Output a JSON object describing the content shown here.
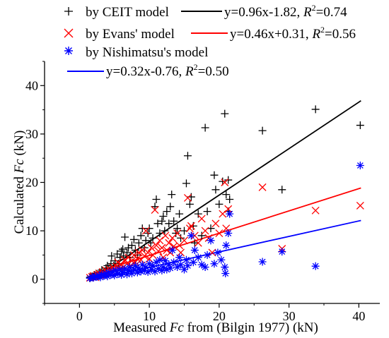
{
  "chart_data": {
    "type": "scatter",
    "xlabel_prefix": "Measured ",
    "xlabel_var": "Fc",
    "xlabel_suffix": " from (Bilgin 1977) (kN)",
    "ylabel_prefix": "Calculated ",
    "ylabel_var": "Fc",
    "ylabel_suffix": " (kN)",
    "xlim": [
      -5,
      43
    ],
    "ylim": [
      -5,
      45
    ],
    "xticks": [
      0,
      10,
      20,
      30,
      40
    ],
    "yticks": [
      0,
      10,
      20,
      30,
      40
    ],
    "grid": false,
    "legend_position": "top",
    "series": [
      {
        "name": "by CEIT model",
        "color": "#000000",
        "marker": "plus",
        "fit_label": "y=0.96x-1.82, ",
        "r2_label": "=0.74",
        "fit": {
          "slope": 0.96,
          "intercept": -1.82,
          "x_range": [
            1.4,
            40.3
          ]
        },
        "points": [
          [
            1.5,
            0.4
          ],
          [
            1.8,
            0.6
          ],
          [
            2.0,
            0.5
          ],
          [
            2.2,
            0.9
          ],
          [
            2.5,
            1.1
          ],
          [
            2.7,
            0.8
          ],
          [
            3.0,
            1.4
          ],
          [
            3.2,
            1.9
          ],
          [
            3.5,
            1.6
          ],
          [
            3.8,
            2.3
          ],
          [
            4.0,
            2.8
          ],
          [
            4.2,
            2.2
          ],
          [
            4.5,
            3.2
          ],
          [
            4.6,
            4.8
          ],
          [
            4.9,
            2.8
          ],
          [
            5.1,
            3.8
          ],
          [
            5.4,
            5.2
          ],
          [
            5.6,
            3.2
          ],
          [
            5.8,
            4.5
          ],
          [
            6.0,
            5.8
          ],
          [
            6.2,
            6.2
          ],
          [
            6.3,
            4.8
          ],
          [
            6.5,
            8.7
          ],
          [
            6.8,
            5.5
          ],
          [
            7.0,
            6.5
          ],
          [
            7.2,
            4.5
          ],
          [
            7.5,
            7.0
          ],
          [
            7.8,
            8.2
          ],
          [
            8.0,
            6.0
          ],
          [
            8.3,
            5.0
          ],
          [
            8.5,
            7.5
          ],
          [
            8.8,
            9.0
          ],
          [
            9.0,
            10.5
          ],
          [
            9.3,
            6.5
          ],
          [
            9.5,
            8.0
          ],
          [
            9.8,
            9.5
          ],
          [
            10.0,
            10.5
          ],
          [
            10.2,
            7.5
          ],
          [
            10.5,
            8.5
          ],
          [
            10.8,
            15.0
          ],
          [
            11.0,
            16.5
          ],
          [
            11.2,
            11.5
          ],
          [
            11.5,
            9.5
          ],
          [
            11.8,
            12.0
          ],
          [
            12.0,
            13.0
          ],
          [
            12.2,
            10.0
          ],
          [
            12.5,
            14.0
          ],
          [
            12.8,
            11.5
          ],
          [
            13.0,
            15.0
          ],
          [
            13.2,
            17.5
          ],
          [
            13.5,
            12.0
          ],
          [
            13.8,
            9.5
          ],
          [
            14.0,
            10.5
          ],
          [
            14.3,
            13.5
          ],
          [
            14.5,
            8.5
          ],
          [
            15.0,
            10.0
          ],
          [
            15.3,
            19.8
          ],
          [
            15.5,
            25.5
          ],
          [
            15.8,
            15.5
          ],
          [
            16.0,
            17.0
          ],
          [
            16.3,
            11.0
          ],
          [
            16.5,
            7.5
          ],
          [
            17.0,
            13.5
          ],
          [
            17.5,
            9.0
          ],
          [
            18.0,
            31.3
          ],
          [
            18.3,
            14.0
          ],
          [
            18.8,
            10.5
          ],
          [
            19.3,
            21.5
          ],
          [
            19.5,
            18.5
          ],
          [
            20.0,
            15.5
          ],
          [
            20.5,
            20.2
          ],
          [
            20.8,
            34.2
          ],
          [
            21.0,
            17.5
          ],
          [
            21.3,
            20.5
          ],
          [
            21.5,
            16.5
          ],
          [
            21.3,
            14.0
          ],
          [
            26.2,
            30.7
          ],
          [
            29.0,
            18.5
          ],
          [
            33.8,
            35.1
          ],
          [
            40.2,
            31.8
          ]
        ]
      },
      {
        "name": "by Evans' model",
        "color": "#ff0000",
        "marker": "x",
        "fit_label": "y=0.46x+0.31, ",
        "r2_label": "=0.56",
        "fit": {
          "slope": 0.46,
          "intercept": 0.31,
          "x_range": [
            1.4,
            40.3
          ]
        },
        "points": [
          [
            1.5,
            0.3
          ],
          [
            1.8,
            0.5
          ],
          [
            2.0,
            0.7
          ],
          [
            2.3,
            0.4
          ],
          [
            2.5,
            0.9
          ],
          [
            2.8,
            1.2
          ],
          [
            3.0,
            0.8
          ],
          [
            3.3,
            1.5
          ],
          [
            3.5,
            1.1
          ],
          [
            3.8,
            1.8
          ],
          [
            4.0,
            1.3
          ],
          [
            4.3,
            2.0
          ],
          [
            4.5,
            1.6
          ],
          [
            4.8,
            2.4
          ],
          [
            5.0,
            1.8
          ],
          [
            5.3,
            2.6
          ],
          [
            5.5,
            3.5
          ],
          [
            5.8,
            2.2
          ],
          [
            6.0,
            3.0
          ],
          [
            6.3,
            2.5
          ],
          [
            6.5,
            4.0
          ],
          [
            6.8,
            3.2
          ],
          [
            7.0,
            4.5
          ],
          [
            7.3,
            2.8
          ],
          [
            7.5,
            3.8
          ],
          [
            7.8,
            5.0
          ],
          [
            8.0,
            3.5
          ],
          [
            8.3,
            4.2
          ],
          [
            8.5,
            5.5
          ],
          [
            8.8,
            4.0
          ],
          [
            9.0,
            6.0
          ],
          [
            9.3,
            4.8
          ],
          [
            9.5,
            10.0
          ],
          [
            9.8,
            5.5
          ],
          [
            10.0,
            4.2
          ],
          [
            10.3,
            6.5
          ],
          [
            10.5,
            5.0
          ],
          [
            10.8,
            14.3
          ],
          [
            11.0,
            7.0
          ],
          [
            11.3,
            5.8
          ],
          [
            11.5,
            8.0
          ],
          [
            11.8,
            6.5
          ],
          [
            12.0,
            4.5
          ],
          [
            12.3,
            9.0
          ],
          [
            12.5,
            6.0
          ],
          [
            12.8,
            7.5
          ],
          [
            13.0,
            5.5
          ],
          [
            13.3,
            8.5
          ],
          [
            13.5,
            6.8
          ],
          [
            14.0,
            9.5
          ],
          [
            14.3,
            7.0
          ],
          [
            14.5,
            5.5
          ],
          [
            15.0,
            8.0
          ],
          [
            15.5,
            16.8
          ],
          [
            15.8,
            10.5
          ],
          [
            16.0,
            11.0
          ],
          [
            16.5,
            9.0
          ],
          [
            17.0,
            7.5
          ],
          [
            17.5,
            12.5
          ],
          [
            18.0,
            10.0
          ],
          [
            18.5,
            8.5
          ],
          [
            19.0,
            5.5
          ],
          [
            19.5,
            11.5
          ],
          [
            20.0,
            9.5
          ],
          [
            20.5,
            13.5
          ],
          [
            20.8,
            20.0
          ],
          [
            21.0,
            10.5
          ],
          [
            21.3,
            14.5
          ],
          [
            26.2,
            19.0
          ],
          [
            29.0,
            6.3
          ],
          [
            33.8,
            14.2
          ],
          [
            40.2,
            15.2
          ]
        ]
      },
      {
        "name": "by Nishimatsu's model",
        "color": "#0000ff",
        "marker": "asterisk",
        "fit_label": "y=0.32x-0.76, ",
        "r2_label": "=0.50",
        "fit": {
          "slope": 0.32,
          "intercept": -0.76,
          "x_range": [
            1.4,
            40.3
          ]
        },
        "points": [
          [
            1.5,
            0.2
          ],
          [
            1.8,
            0.4
          ],
          [
            2.0,
            0.3
          ],
          [
            2.2,
            0.6
          ],
          [
            2.5,
            0.5
          ],
          [
            2.8,
            0.8
          ],
          [
            3.0,
            0.4
          ],
          [
            3.2,
            1.0
          ],
          [
            3.5,
            0.7
          ],
          [
            3.8,
            1.2
          ],
          [
            4.0,
            0.6
          ],
          [
            4.2,
            1.4
          ],
          [
            4.5,
            0.9
          ],
          [
            4.8,
            1.6
          ],
          [
            5.0,
            0.8
          ],
          [
            5.2,
            1.8
          ],
          [
            5.5,
            1.1
          ],
          [
            5.8,
            2.0
          ],
          [
            6.0,
            0.9
          ],
          [
            6.2,
            1.5
          ],
          [
            6.5,
            2.2
          ],
          [
            6.8,
            1.0
          ],
          [
            7.0,
            1.8
          ],
          [
            7.2,
            2.5
          ],
          [
            7.5,
            1.2
          ],
          [
            7.8,
            2.0
          ],
          [
            8.0,
            2.8
          ],
          [
            8.3,
            1.4
          ],
          [
            8.5,
            2.3
          ],
          [
            8.8,
            1.6
          ],
          [
            9.0,
            3.0
          ],
          [
            9.3,
            1.8
          ],
          [
            9.5,
            2.5
          ],
          [
            9.8,
            1.5
          ],
          [
            10.0,
            3.2
          ],
          [
            10.3,
            2.0
          ],
          [
            10.5,
            2.8
          ],
          [
            10.8,
            1.6
          ],
          [
            11.0,
            3.5
          ],
          [
            11.3,
            2.2
          ],
          [
            11.5,
            4.0
          ],
          [
            11.8,
            1.8
          ],
          [
            12.0,
            2.5
          ],
          [
            12.3,
            3.8
          ],
          [
            12.5,
            2.0
          ],
          [
            12.8,
            3.0
          ],
          [
            13.0,
            2.3
          ],
          [
            13.3,
            6.0
          ],
          [
            13.5,
            3.5
          ],
          [
            14.0,
            2.5
          ],
          [
            14.3,
            4.5
          ],
          [
            14.5,
            3.0
          ],
          [
            15.0,
            2.0
          ],
          [
            15.3,
            4.0
          ],
          [
            15.5,
            2.8
          ],
          [
            16.0,
            9.0
          ],
          [
            16.3,
            3.5
          ],
          [
            16.5,
            6.0
          ],
          [
            17.0,
            4.5
          ],
          [
            17.5,
            3.0
          ],
          [
            18.0,
            2.5
          ],
          [
            18.3,
            5.0
          ],
          [
            18.8,
            8.0
          ],
          [
            19.3,
            3.2
          ],
          [
            19.8,
            5.5
          ],
          [
            20.3,
            4.0
          ],
          [
            20.8,
            2.5
          ],
          [
            20.9,
            1.2
          ],
          [
            21.0,
            7.0
          ],
          [
            21.3,
            9.5
          ],
          [
            21.5,
            13.5
          ],
          [
            26.2,
            3.6
          ],
          [
            29.0,
            5.7
          ],
          [
            33.8,
            2.7
          ],
          [
            40.2,
            23.5
          ]
        ]
      }
    ]
  }
}
